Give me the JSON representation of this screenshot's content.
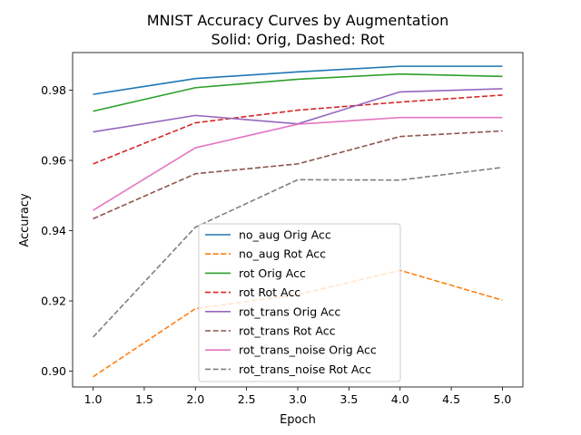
{
  "chart_data": {
    "type": "line",
    "title": "MNIST Accuracy Curves by Augmentation",
    "subtitle": "Solid: Orig, Dashed: Rot",
    "xlabel": "Epoch",
    "ylabel": "Accuracy",
    "xlim": [
      0.8,
      5.2
    ],
    "ylim": [
      0.8955,
      0.9907
    ],
    "xticks": [
      1.0,
      1.5,
      2.0,
      2.5,
      3.0,
      3.5,
      4.0,
      4.5,
      5.0
    ],
    "xtick_labels": [
      "1.0",
      "1.5",
      "2.0",
      "2.5",
      "3.0",
      "3.5",
      "4.0",
      "4.5",
      "5.0"
    ],
    "yticks": [
      0.9,
      0.92,
      0.94,
      0.96,
      0.98
    ],
    "ytick_labels": [
      "0.90",
      "0.92",
      "0.94",
      "0.96",
      "0.98"
    ],
    "grid": false,
    "legend_position": "lower-center",
    "x": [
      1,
      2,
      3,
      4,
      5
    ],
    "series": [
      {
        "name": "no_aug Orig Acc",
        "color": "#1f77b4",
        "style": "solid",
        "values": [
          0.9788,
          0.9833,
          0.9852,
          0.9868,
          0.9868
        ]
      },
      {
        "name": "no_aug Rot Acc",
        "color": "#ff7f0e",
        "style": "dashed",
        "values": [
          0.8984,
          0.9178,
          0.9218,
          0.9287,
          0.9202
        ]
      },
      {
        "name": "rot Orig Acc",
        "color": "#2ca02c",
        "style": "solid",
        "values": [
          0.974,
          0.9807,
          0.9831,
          0.9846,
          0.9839
        ]
      },
      {
        "name": "rot Rot Acc",
        "color": "#d62728",
        "style": "dashed",
        "values": [
          0.959,
          0.9707,
          0.9743,
          0.9766,
          0.9786
        ]
      },
      {
        "name": "rot_trans Orig Acc",
        "color": "#9467bd",
        "style": "solid",
        "values": [
          0.9681,
          0.9728,
          0.9704,
          0.9795,
          0.9804
        ]
      },
      {
        "name": "rot_trans Rot Acc",
        "color": "#8c564b",
        "style": "dashed",
        "values": [
          0.9434,
          0.9562,
          0.959,
          0.9668,
          0.9684
        ]
      },
      {
        "name": "rot_trans_noise Orig Acc",
        "color": "#e377c2",
        "style": "solid",
        "values": [
          0.9458,
          0.9636,
          0.9703,
          0.9722,
          0.9722
        ]
      },
      {
        "name": "rot_trans_noise Rot Acc",
        "color": "#7f7f7f",
        "style": "dashed",
        "values": [
          0.9097,
          0.941,
          0.9545,
          0.9544,
          0.958
        ]
      }
    ]
  }
}
